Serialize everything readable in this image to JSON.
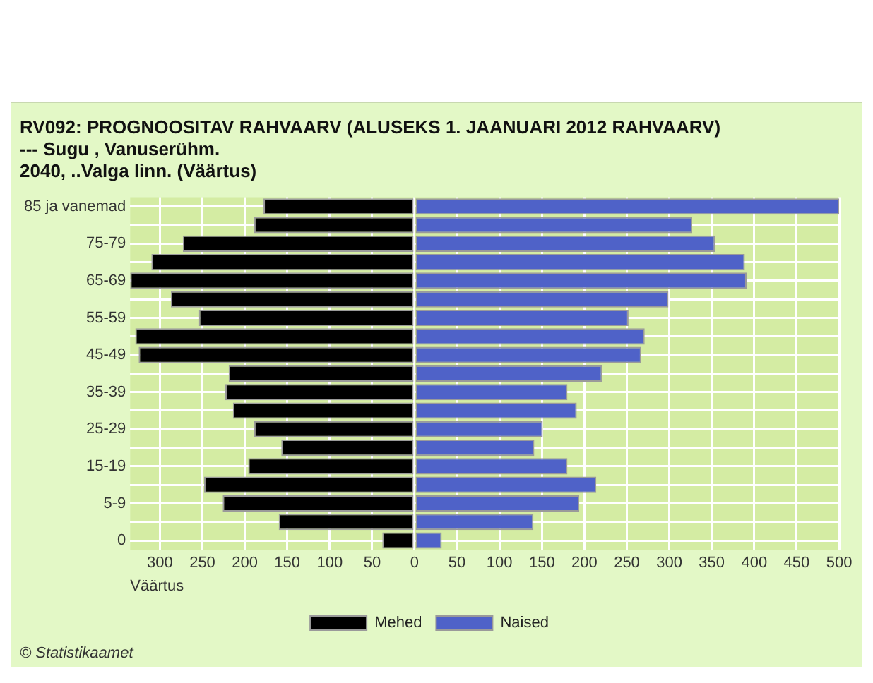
{
  "chart_data": {
    "type": "bar",
    "orientation": "horizontal",
    "stacked": true,
    "title": [
      "RV092: PROGNOOSITAV RAHVAARV (ALUSEKS 1. JAANUARI 2012 RAHVAARV)",
      "--- Sugu , Vanuserühm.",
      "2040, ..Valga linn. (Väärtus)"
    ],
    "xlabel": "Väärtus",
    "categories": [
      "85 ja vanemad",
      null,
      "75-79",
      null,
      "65-69",
      null,
      "55-59",
      null,
      "45-49",
      null,
      "35-39",
      null,
      "25-29",
      null,
      "15-19",
      null,
      "5-9",
      null,
      "0"
    ],
    "series": [
      {
        "name": "Mehed",
        "color": "#000000",
        "values": [
          -178,
          -189,
          -273,
          -310,
          -335,
          -287,
          -254,
          -329,
          -325,
          -219,
          -223,
          -214,
          -189,
          -157,
          -196,
          -248,
          -226,
          -160,
          -38
        ]
      },
      {
        "name": "Naised",
        "color": "#4f62c8",
        "values": [
          500,
          327,
          354,
          389,
          391,
          299,
          252,
          271,
          267,
          221,
          180,
          191,
          151,
          141,
          180,
          214,
          194,
          140,
          32
        ]
      }
    ],
    "xlim": [
      -335,
      500
    ],
    "xticks": [
      {
        "value": -300,
        "label": "300"
      },
      {
        "value": -250,
        "label": "250"
      },
      {
        "value": -200,
        "label": "200"
      },
      {
        "value": -150,
        "label": "150"
      },
      {
        "value": -100,
        "label": "100"
      },
      {
        "value": -50,
        "label": "50"
      },
      0,
      50,
      100,
      150,
      200,
      250,
      300,
      350,
      400,
      450,
      500
    ],
    "grid": true,
    "legend": "bottom",
    "annotations": [
      "© Statistikaamet"
    ]
  }
}
